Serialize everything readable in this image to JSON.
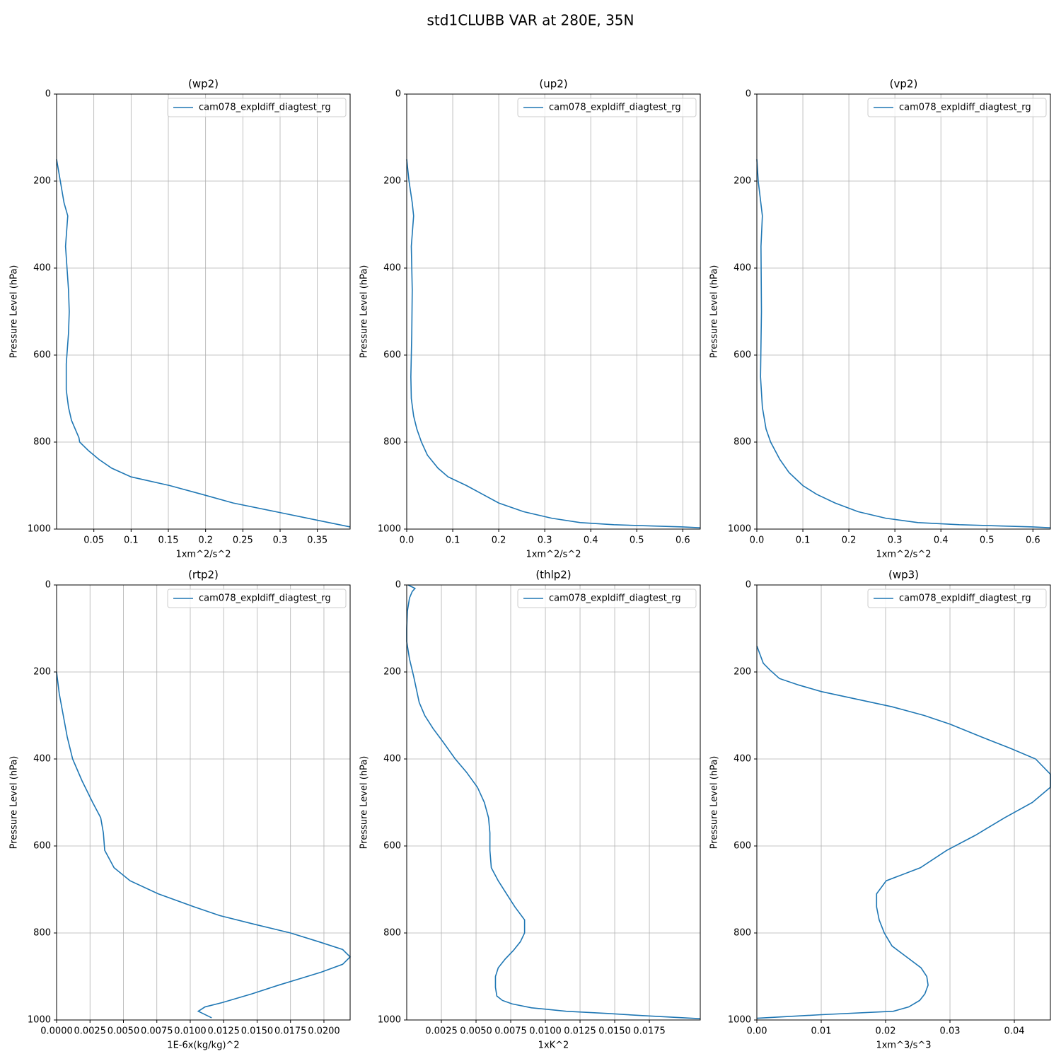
{
  "title": "std1CLUBB VAR at 280E, 35N",
  "chart_data": [
    {
      "type": "line",
      "title": "(wp2)",
      "xlabel": "1xm^2/s^2",
      "ylabel": "Pressure Level (hPa)",
      "y": [
        150,
        200,
        250,
        280,
        350,
        450,
        500,
        550,
        620,
        680,
        720,
        750,
        770,
        790,
        800,
        820,
        840,
        860,
        880,
        900,
        920,
        940,
        960,
        980,
        995
      ],
      "series": [
        {
          "name": "cam078_expldiff_diagtest_rg",
          "color": "#1f77b4",
          "values": [
            0,
            0.005,
            0.01,
            0.015,
            0.012,
            0.016,
            0.017,
            0.016,
            0.013,
            0.013,
            0.016,
            0.02,
            0.025,
            0.03,
            0.031,
            0.043,
            0.057,
            0.074,
            0.1,
            0.152,
            0.195,
            0.237,
            0.294,
            0.351,
            0.394
          ]
        }
      ],
      "xlim": [
        0,
        0.394
      ],
      "xticks": [
        0.05,
        0.1,
        0.15,
        0.2,
        0.25,
        0.3,
        0.35
      ],
      "ylim": [
        1000,
        0
      ],
      "yticks": [
        0,
        200,
        400,
        600,
        800,
        1000
      ],
      "grid": true,
      "legend": "upper right"
    },
    {
      "type": "line",
      "title": "(up2)",
      "xlabel": "1xm^2/s^2",
      "ylabel": "Pressure Level (hPa)",
      "y": [
        150,
        200,
        250,
        280,
        350,
        450,
        550,
        650,
        700,
        740,
        770,
        800,
        830,
        860,
        880,
        900,
        920,
        940,
        960,
        975,
        985,
        990,
        995,
        997
      ],
      "series": [
        {
          "name": "cam078_expldiff_diagtest_rg",
          "color": "#1f77b4",
          "values": [
            0,
            0.005,
            0.012,
            0.015,
            0.01,
            0.012,
            0.011,
            0.009,
            0.01,
            0.015,
            0.022,
            0.032,
            0.045,
            0.068,
            0.09,
            0.13,
            0.165,
            0.2,
            0.254,
            0.315,
            0.377,
            0.45,
            0.6,
            0.638
          ]
        }
      ],
      "xlim": [
        0,
        0.638
      ],
      "xticks": [
        {
          "value": 0,
          "label": "0.0"
        },
        0.1,
        0.2,
        0.3,
        0.4,
        0.5,
        0.6
      ],
      "ylim": [
        1000,
        0
      ],
      "yticks": [
        0,
        200,
        400,
        600,
        800,
        1000
      ],
      "grid": true,
      "legend": "upper right"
    },
    {
      "type": "line",
      "title": "(vp2)",
      "xlabel": "1xm^2/s^2",
      "ylabel": "Pressure Level (hPa)",
      "y": [
        150,
        200,
        280,
        350,
        500,
        650,
        720,
        770,
        800,
        840,
        870,
        900,
        920,
        940,
        960,
        975,
        985,
        990,
        995,
        997
      ],
      "series": [
        {
          "name": "cam078_expldiff_diagtest_rg",
          "color": "#1f77b4",
          "values": [
            0,
            0.003,
            0.012,
            0.009,
            0.01,
            0.008,
            0.012,
            0.02,
            0.03,
            0.05,
            0.07,
            0.1,
            0.13,
            0.17,
            0.22,
            0.28,
            0.35,
            0.44,
            0.6,
            0.638
          ]
        }
      ],
      "xlim": [
        0,
        0.638
      ],
      "xticks": [
        {
          "value": 0,
          "label": "0.0"
        },
        0.1,
        0.2,
        0.3,
        0.4,
        0.5,
        0.6
      ],
      "ylim": [
        1000,
        0
      ],
      "yticks": [
        0,
        200,
        400,
        600,
        800,
        1000
      ],
      "grid": true,
      "legend": "upper right"
    },
    {
      "type": "line",
      "title": "(rtp2)",
      "xlabel": "1E-6x(kg/kg)^2",
      "ylabel": "Pressure Level (hPa)",
      "y": [
        200,
        250,
        300,
        350,
        400,
        450,
        500,
        535,
        570,
        610,
        650,
        680,
        710,
        740,
        760,
        780,
        800,
        820,
        838,
        855,
        872,
        890,
        905,
        920,
        940,
        960,
        970,
        980,
        995
      ],
      "series": [
        {
          "name": "cam078_expldiff_diagtest_rg",
          "color": "#1f77b4",
          "values": [
            0,
            0.0002,
            0.0005,
            0.0008,
            0.0012,
            0.0019,
            0.0027,
            0.0033,
            0.0035,
            0.0036,
            0.0043,
            0.0055,
            0.0076,
            0.0103,
            0.0122,
            0.0148,
            0.0175,
            0.0196,
            0.0214,
            0.02196,
            0.0214,
            0.0198,
            0.0182,
            0.0166,
            0.0146,
            0.0124,
            0.0111,
            0.0106,
            0.0116
          ]
        }
      ],
      "xlim": [
        0,
        0.02196
      ],
      "xticks": [
        {
          "value": 0,
          "label": "0.0000"
        },
        {
          "value": 0.0025,
          "label": "0.0025"
        },
        {
          "value": 0.005,
          "label": "0.0050"
        },
        {
          "value": 0.0075,
          "label": "0.0075"
        },
        {
          "value": 0.01,
          "label": "0.0100"
        },
        {
          "value": 0.0125,
          "label": "0.0125"
        },
        {
          "value": 0.015,
          "label": "0.0150"
        },
        {
          "value": 0.0175,
          "label": "0.0175"
        },
        {
          "value": 0.02,
          "label": "0.0200"
        }
      ],
      "ylim": [
        1000,
        0
      ],
      "yticks": [
        0,
        200,
        400,
        600,
        800,
        1000
      ],
      "grid": true,
      "legend": "upper right"
    },
    {
      "type": "line",
      "title": "(thlp2)",
      "xlabel": "1xK^2",
      "ylabel": "Pressure Level (hPa)",
      "y": [
        0,
        8,
        15,
        30,
        60,
        100,
        130,
        170,
        210,
        240,
        270,
        300,
        330,
        360,
        400,
        430,
        465,
        500,
        535,
        570,
        610,
        650,
        680,
        710,
        740,
        770,
        800,
        820,
        840,
        860,
        880,
        900,
        925,
        945,
        955,
        963,
        972,
        980,
        985,
        990,
        997
      ],
      "series": [
        {
          "name": "cam078_expldiff_diagtest_rg",
          "color": "#1f77b4",
          "values": [
            0.0001,
            0.0006,
            0.0004,
            0.0002,
            5e-05,
            0,
            0,
            0.0002,
            0.0005,
            0.0007,
            0.0009,
            0.0013,
            0.0019,
            0.0026,
            0.0035,
            0.0043,
            0.0051,
            0.0056,
            0.0059,
            0.006,
            0.006,
            0.0061,
            0.0066,
            0.0072,
            0.0078,
            0.0085,
            0.0085,
            0.0082,
            0.0077,
            0.0071,
            0.0066,
            0.0064,
            0.0064,
            0.0065,
            0.0069,
            0.0076,
            0.009,
            0.0115,
            0.0145,
            0.017,
            0.02117
          ]
        }
      ],
      "xlim": [
        0,
        0.02117
      ],
      "xticks": [
        {
          "value": 0.0025,
          "label": "0.0025"
        },
        {
          "value": 0.005,
          "label": "0.0050"
        },
        {
          "value": 0.0075,
          "label": "0.0075"
        },
        {
          "value": 0.01,
          "label": "0.0100"
        },
        {
          "value": 0.0125,
          "label": "0.0125"
        },
        {
          "value": 0.015,
          "label": "0.0150"
        },
        {
          "value": 0.0175,
          "label": "0.0175"
        }
      ],
      "ylim": [
        1000,
        0
      ],
      "yticks": [
        0,
        200,
        400,
        600,
        800,
        1000
      ],
      "grid": true,
      "legend": "upper right"
    },
    {
      "type": "line",
      "title": "(wp3)",
      "xlabel": "1xm^3/s^3",
      "ylabel": "Pressure Level (hPa)",
      "y": [
        140,
        180,
        195,
        215,
        230,
        245,
        280,
        300,
        320,
        350,
        375,
        400,
        435,
        465,
        500,
        535,
        575,
        610,
        650,
        680,
        710,
        740,
        770,
        800,
        830,
        860,
        880,
        900,
        920,
        940,
        955,
        970,
        980,
        988,
        996
      ],
      "series": [
        {
          "name": "cam078_expldiff_diagtest_rg",
          "color": "#1f77b4",
          "values": [
            0,
            0.001,
            0.002,
            0.0035,
            0.0065,
            0.01,
            0.021,
            0.026,
            0.03,
            0.035,
            0.0393,
            0.0433,
            0.0456,
            0.0456,
            0.0428,
            0.0385,
            0.034,
            0.0295,
            0.0254,
            0.0201,
            0.0186,
            0.0186,
            0.019,
            0.0198,
            0.021,
            0.0237,
            0.0255,
            0.0264,
            0.0266,
            0.0261,
            0.0253,
            0.0236,
            0.0212,
            0.0098,
            0
          ]
        }
      ],
      "xlim": [
        0,
        0.0456
      ],
      "xticks": [
        {
          "value": 0,
          "label": "0.00"
        },
        0.01,
        0.02,
        0.03,
        0.04
      ],
      "ylim": [
        1000,
        0
      ],
      "yticks": [
        0,
        200,
        400,
        600,
        800,
        1000
      ],
      "grid": true,
      "legend": "upper right"
    }
  ]
}
